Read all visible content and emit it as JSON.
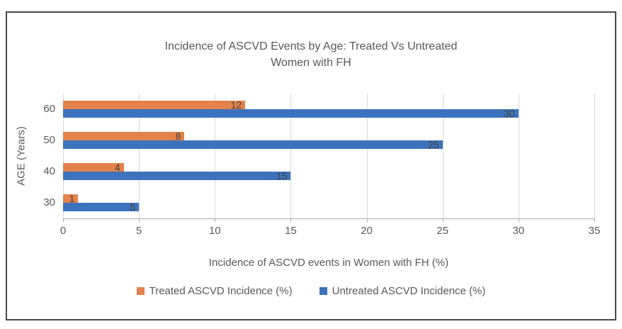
{
  "chart_data": {
    "type": "bar",
    "orientation": "horizontal",
    "title": "Incidence of ASCVD Events by Age: Treated Vs Untreated Women with FH",
    "title_lines": [
      "Incidence of ASCVD Events by Age: Treated Vs Untreated",
      "Women with FH"
    ],
    "xlabel": "Incidence of ASCVD events in Women with FH (%)",
    "ylabel": "AGE (Years)",
    "categories": [
      "60",
      "50",
      "40",
      "30"
    ],
    "series": [
      {
        "name": "Treated ASCVD Incidence (%)",
        "color": "#E3824A",
        "values": [
          12,
          8,
          4,
          1
        ]
      },
      {
        "name": "Untreated ASCVD Incidence (%)",
        "color": "#3D73BD",
        "values": [
          30,
          25,
          15,
          5
        ]
      }
    ],
    "xlim": [
      0,
      35
    ],
    "xticks": [
      "0",
      "5",
      "10",
      "15",
      "20",
      "25",
      "30",
      "35"
    ],
    "grid": true,
    "legend_position": "bottom",
    "data_labels": "inside-end",
    "data_label_color": "#404040",
    "axis_text_color": "#595959"
  }
}
